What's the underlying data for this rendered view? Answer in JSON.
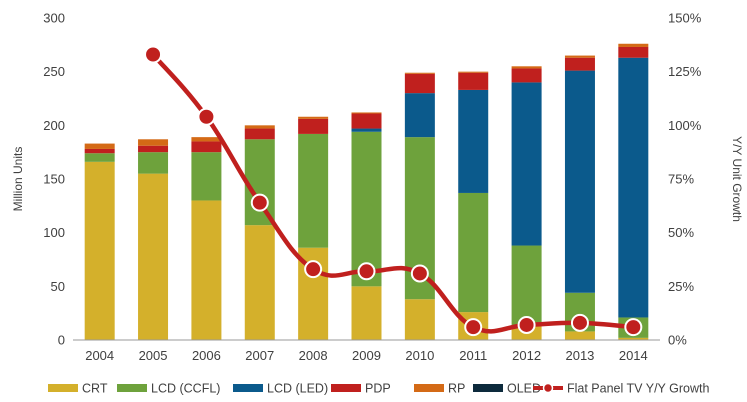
{
  "chart_data": {
    "type": "bar",
    "stacked": true,
    "categories": [
      "2004",
      "2005",
      "2006",
      "2007",
      "2008",
      "2009",
      "2010",
      "2011",
      "2012",
      "2013",
      "2014"
    ],
    "series": [
      {
        "name": "CRT",
        "color": "#d4b02b",
        "values": [
          166,
          155,
          130,
          107,
          86,
          50,
          38,
          26,
          14,
          8,
          2
        ]
      },
      {
        "name": "LCD (CCFL)",
        "color": "#6ea23c",
        "values": [
          8,
          20,
          45,
          80,
          106,
          144,
          151,
          111,
          74,
          36,
          19
        ]
      },
      {
        "name": "LCD (LED)",
        "color": "#0b5a8c",
        "values": [
          0,
          0,
          0,
          0,
          0,
          3,
          41,
          96,
          152,
          207,
          242
        ]
      },
      {
        "name": "PDP",
        "color": "#c0201e",
        "values": [
          4,
          6,
          10,
          10,
          14,
          14,
          18,
          16,
          13,
          12,
          10
        ]
      },
      {
        "name": "RP",
        "color": "#d46a16",
        "values": [
          5,
          6,
          4,
          3,
          2,
          1,
          1,
          1,
          2,
          2,
          3
        ]
      },
      {
        "name": "OLED",
        "color": "#0d2a3c",
        "values": [
          0,
          0,
          0,
          0,
          0,
          0,
          0,
          0,
          0,
          0,
          0
        ]
      }
    ],
    "line_series": {
      "name": "Flat Panel TV Y/Y Growth",
      "color": "#c0201e",
      "axis": "right",
      "categories": [
        "2005",
        "2006",
        "2007",
        "2008",
        "2009",
        "2010",
        "2011",
        "2012",
        "2013",
        "2014"
      ],
      "values": [
        133,
        104,
        64,
        33,
        32,
        31,
        6,
        7,
        8,
        6
      ]
    },
    "left_axis": {
      "label": "Million Units",
      "min": 0,
      "max": 300,
      "ticks": [
        "0",
        "50",
        "100",
        "150",
        "200",
        "250",
        "300"
      ]
    },
    "right_axis": {
      "label": "Y/Y Unit Growth",
      "min": 0,
      "max": 150,
      "ticks": [
        "0%",
        "25%",
        "50%",
        "75%",
        "100%",
        "125%",
        "150%"
      ]
    },
    "grid": false,
    "legend_position": "bottom"
  }
}
